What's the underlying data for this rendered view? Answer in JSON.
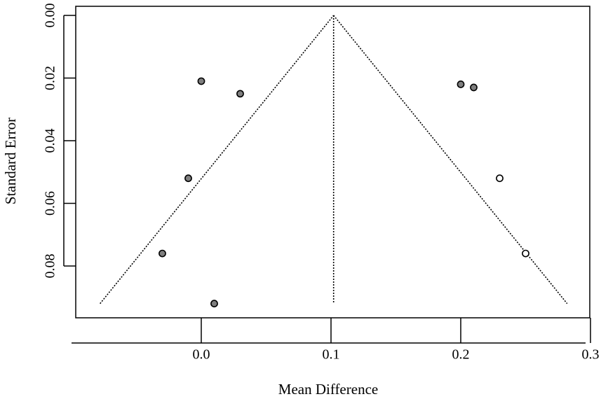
{
  "chart_data": {
    "type": "scatter",
    "title": "",
    "xlabel": "Mean Difference",
    "ylabel": "Standard Error",
    "xlim": [
      -0.1,
      0.3
    ],
    "ylim": [
      0.0,
      0.094
    ],
    "y_reversed": true,
    "xticks": [
      0.0,
      0.1,
      0.2,
      0.3
    ],
    "xtick_labels": [
      "0.0",
      "0.1",
      "0.2",
      "0.3"
    ],
    "yticks": [
      0.0,
      0.02,
      0.04,
      0.06,
      0.08
    ],
    "ytick_labels": [
      "0.00",
      "0.02",
      "0.04",
      "0.06",
      "0.08"
    ],
    "grid": false,
    "pooled_estimate": 0.102,
    "funnel": {
      "apex": [
        0.102,
        0.0
      ],
      "left_base": [
        -0.078,
        0.092
      ],
      "right_base": [
        0.282,
        0.092
      ]
    },
    "series": [
      {
        "marker": "filled",
        "fill": "#7f7f7f",
        "points": [
          {
            "x": 0.0,
            "y": 0.021
          },
          {
            "x": 0.03,
            "y": 0.025
          },
          {
            "x": -0.01,
            "y": 0.052
          },
          {
            "x": -0.03,
            "y": 0.076
          },
          {
            "x": 0.01,
            "y": 0.092
          },
          {
            "x": 0.2,
            "y": 0.022
          },
          {
            "x": 0.21,
            "y": 0.023
          }
        ]
      },
      {
        "marker": "open",
        "fill": "#ffffff",
        "points": [
          {
            "x": 0.23,
            "y": 0.052
          },
          {
            "x": 0.25,
            "y": 0.076
          }
        ]
      }
    ]
  }
}
